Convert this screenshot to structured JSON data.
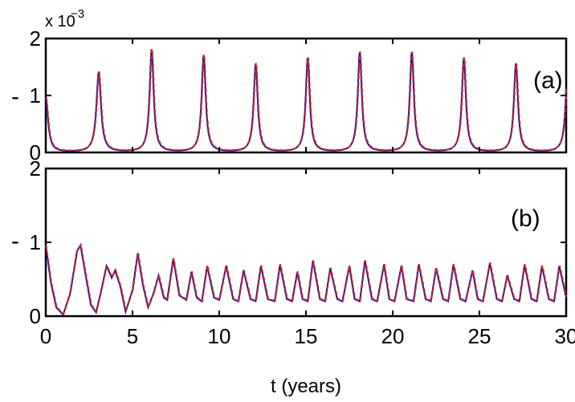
{
  "chart_data": [
    {
      "type": "line",
      "panel_label": "(a)",
      "y_multiplier": "x 10",
      "y_multiplier_exp": "−3",
      "y_dash": "-",
      "xlim": [
        0,
        30
      ],
      "ylim": [
        0,
        2
      ],
      "yticks": [
        "0",
        "1",
        "2"
      ],
      "grid": false,
      "peaks": [
        {
          "x": 0.0,
          "y": 0.95,
          "w": 0.16
        },
        {
          "x": 3.05,
          "y": 1.4,
          "w": 0.16
        },
        {
          "x": 6.1,
          "y": 1.8,
          "w": 0.14
        },
        {
          "x": 9.1,
          "y": 1.7,
          "w": 0.14
        },
        {
          "x": 12.1,
          "y": 1.55,
          "w": 0.14
        },
        {
          "x": 15.1,
          "y": 1.65,
          "w": 0.14
        },
        {
          "x": 18.1,
          "y": 1.75,
          "w": 0.14
        },
        {
          "x": 21.1,
          "y": 1.75,
          "w": 0.14
        },
        {
          "x": 24.1,
          "y": 1.65,
          "w": 0.14
        },
        {
          "x": 27.1,
          "y": 1.55,
          "w": 0.14
        },
        {
          "x": 30.1,
          "y": 1.7,
          "w": 0.14
        }
      ],
      "series_colors": [
        "#1a1aa0",
        "#e02020"
      ]
    },
    {
      "type": "line",
      "panel_label": "(b)",
      "y_dash": "-",
      "xlim": [
        0,
        30
      ],
      "ylim": [
        0,
        2
      ],
      "yticks": [
        "0",
        "1",
        "2"
      ],
      "grid": false,
      "points": [
        [
          0.0,
          0.95
        ],
        [
          0.3,
          0.45
        ],
        [
          0.6,
          0.12
        ],
        [
          1.0,
          0.02
        ],
        [
          1.4,
          0.3
        ],
        [
          1.8,
          0.88
        ],
        [
          2.0,
          0.96
        ],
        [
          2.3,
          0.55
        ],
        [
          2.6,
          0.15
        ],
        [
          2.9,
          0.05
        ],
        [
          3.2,
          0.35
        ],
        [
          3.5,
          0.68
        ],
        [
          3.8,
          0.52
        ],
        [
          4.0,
          0.62
        ],
        [
          4.3,
          0.4
        ],
        [
          4.6,
          0.06
        ],
        [
          5.0,
          0.35
        ],
        [
          5.3,
          0.85
        ],
        [
          5.6,
          0.42
        ],
        [
          5.9,
          0.12
        ],
        [
          6.2,
          0.3
        ],
        [
          6.5,
          0.55
        ],
        [
          6.8,
          0.25
        ],
        [
          7.0,
          0.22
        ],
        [
          7.35,
          0.78
        ],
        [
          7.7,
          0.28
        ],
        [
          8.1,
          0.22
        ],
        [
          8.4,
          0.6
        ],
        [
          8.7,
          0.25
        ],
        [
          9.0,
          0.2
        ],
        [
          9.3,
          0.68
        ],
        [
          9.7,
          0.25
        ],
        [
          10.0,
          0.22
        ],
        [
          10.4,
          0.68
        ],
        [
          10.8,
          0.23
        ],
        [
          11.1,
          0.2
        ],
        [
          11.4,
          0.62
        ],
        [
          11.8,
          0.23
        ],
        [
          12.1,
          0.2
        ],
        [
          12.4,
          0.68
        ],
        [
          12.8,
          0.23
        ],
        [
          13.2,
          0.2
        ],
        [
          13.5,
          0.7
        ],
        [
          13.9,
          0.23
        ],
        [
          14.2,
          0.2
        ],
        [
          14.5,
          0.6
        ],
        [
          14.8,
          0.23
        ],
        [
          15.1,
          0.2
        ],
        [
          15.4,
          0.75
        ],
        [
          15.8,
          0.23
        ],
        [
          16.1,
          0.2
        ],
        [
          16.4,
          0.65
        ],
        [
          16.8,
          0.23
        ],
        [
          17.1,
          0.2
        ],
        [
          17.5,
          0.68
        ],
        [
          17.8,
          0.23
        ],
        [
          18.1,
          0.2
        ],
        [
          18.4,
          0.75
        ],
        [
          18.8,
          0.23
        ],
        [
          19.1,
          0.2
        ],
        [
          19.5,
          0.7
        ],
        [
          19.8,
          0.23
        ],
        [
          20.1,
          0.2
        ],
        [
          20.5,
          0.68
        ],
        [
          20.8,
          0.23
        ],
        [
          21.2,
          0.2
        ],
        [
          21.5,
          0.7
        ],
        [
          21.9,
          0.23
        ],
        [
          22.2,
          0.2
        ],
        [
          22.5,
          0.65
        ],
        [
          22.9,
          0.23
        ],
        [
          23.2,
          0.2
        ],
        [
          23.5,
          0.7
        ],
        [
          23.9,
          0.23
        ],
        [
          24.2,
          0.2
        ],
        [
          24.6,
          0.62
        ],
        [
          24.9,
          0.23
        ],
        [
          25.2,
          0.2
        ],
        [
          25.6,
          0.72
        ],
        [
          26.0,
          0.23
        ],
        [
          26.3,
          0.2
        ],
        [
          26.6,
          0.55
        ],
        [
          27.0,
          0.23
        ],
        [
          27.3,
          0.2
        ],
        [
          27.6,
          0.7
        ],
        [
          28.0,
          0.23
        ],
        [
          28.3,
          0.2
        ],
        [
          28.6,
          0.68
        ],
        [
          29.0,
          0.23
        ],
        [
          29.3,
          0.2
        ],
        [
          29.6,
          0.68
        ],
        [
          30.0,
          0.25
        ]
      ],
      "series_colors": [
        "#1a1aa0",
        "#e02020"
      ]
    }
  ],
  "x_axis": {
    "label": "t (years)",
    "ticks": [
      "0",
      "5",
      "10",
      "15",
      "20",
      "25",
      "30"
    ]
  }
}
